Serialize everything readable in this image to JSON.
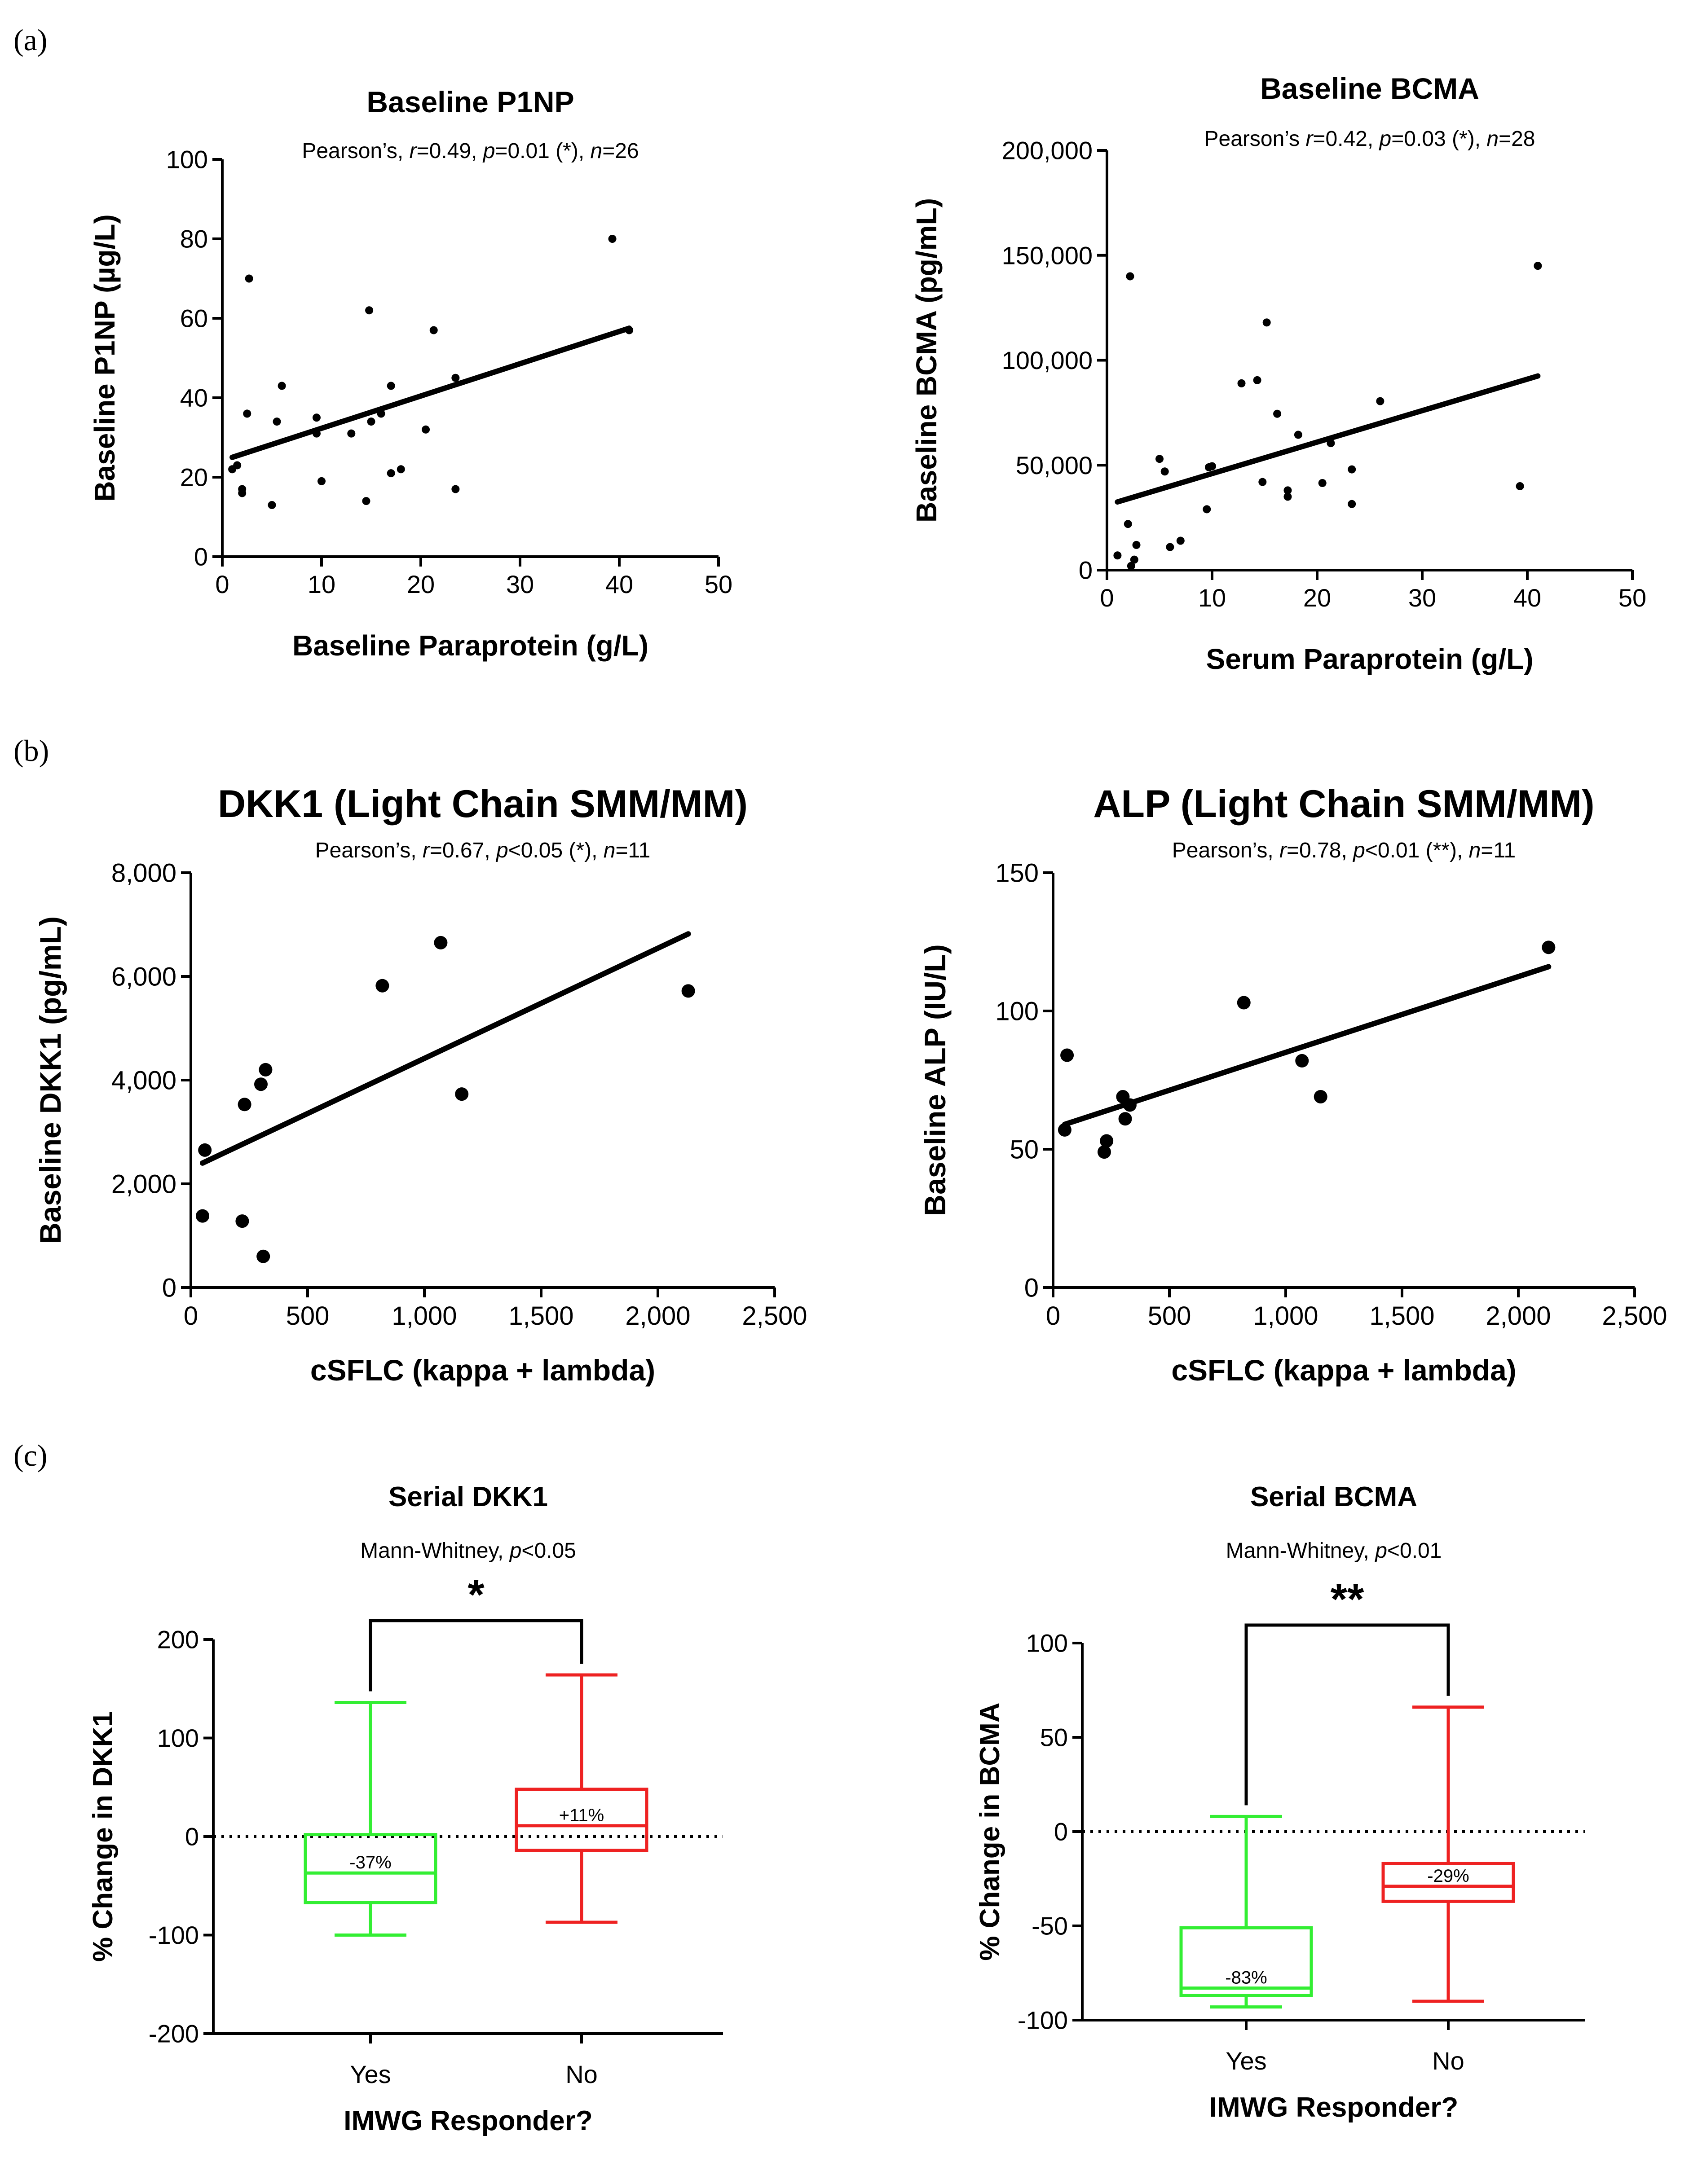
{
  "panels": [
    {
      "label": "(a)"
    },
    {
      "label": "(b)"
    },
    {
      "label": "(c)"
    }
  ],
  "chart_data": [
    {
      "id": "p1np",
      "type": "scatter",
      "panel": "(a)",
      "title": "Baseline P1NP",
      "stats": [
        {
          "text": "Pearson’s, ",
          "italic": false
        },
        {
          "text": "r",
          "italic": true
        },
        {
          "text": "=0.49, ",
          "italic": false
        },
        {
          "text": "p",
          "italic": true
        },
        {
          "text": "=0.01 (*), ",
          "italic": false
        },
        {
          "text": "n",
          "italic": true
        },
        {
          "text": "=26",
          "italic": false
        }
      ],
      "xlabel": "Baseline Paraprotein (g/L)",
      "ylabel": "Baseline P1NP (µg/L)",
      "xlim": [
        0,
        50
      ],
      "ylim": [
        0,
        100
      ],
      "xticks": [
        0,
        10,
        20,
        30,
        40,
        50
      ],
      "xtick_labels": [
        "0",
        "10",
        "20",
        "30",
        "40",
        "50"
      ],
      "yticks": [
        0,
        20,
        40,
        60,
        80,
        100
      ],
      "ytick_labels": [
        "0",
        "20",
        "40",
        "60",
        "80",
        "100"
      ],
      "points": [
        [
          1,
          22
        ],
        [
          1.5,
          23
        ],
        [
          2,
          17
        ],
        [
          2,
          16
        ],
        [
          2.5,
          36
        ],
        [
          2.7,
          70
        ],
        [
          5,
          13
        ],
        [
          5.5,
          34
        ],
        [
          6,
          43
        ],
        [
          9.5,
          35
        ],
        [
          9.5,
          31
        ],
        [
          10,
          19
        ],
        [
          13,
          31
        ],
        [
          14.5,
          14
        ],
        [
          14.8,
          62
        ],
        [
          15,
          34
        ],
        [
          16,
          36
        ],
        [
          17,
          43
        ],
        [
          17,
          21
        ],
        [
          18,
          22
        ],
        [
          20.5,
          32
        ],
        [
          21.3,
          57
        ],
        [
          23.5,
          45
        ],
        [
          23.5,
          17
        ],
        [
          39.3,
          80
        ],
        [
          41,
          57
        ]
      ],
      "fit": [
        [
          1,
          25
        ],
        [
          41,
          57.5
        ]
      ],
      "dot_size": "small"
    },
    {
      "id": "bcma",
      "type": "scatter",
      "panel": "(a)",
      "title": "Baseline BCMA",
      "stats": [
        {
          "text": "Pearson’s ",
          "italic": false
        },
        {
          "text": "r",
          "italic": true
        },
        {
          "text": "=0.42, ",
          "italic": false
        },
        {
          "text": "p",
          "italic": true
        },
        {
          "text": "=0.03 (*), ",
          "italic": false
        },
        {
          "text": "n",
          "italic": true
        },
        {
          "text": "=28",
          "italic": false
        }
      ],
      "xlabel": "Serum Paraprotein (g/L)",
      "ylabel": "Baseline BCMA (pg/mL)",
      "xlim": [
        0,
        50
      ],
      "ylim": [
        0,
        200000
      ],
      "xticks": [
        0,
        10,
        20,
        30,
        40,
        50
      ],
      "xtick_labels": [
        "0",
        "10",
        "20",
        "30",
        "40",
        "50"
      ],
      "yticks": [
        0,
        50000,
        100000,
        150000,
        200000
      ],
      "ytick_labels": [
        "0",
        "50,000",
        "100,000",
        "150,000",
        "200,000"
      ],
      "points": [
        [
          1,
          7000
        ],
        [
          2,
          22000
        ],
        [
          2.2,
          140000
        ],
        [
          2.3,
          2000
        ],
        [
          2.6,
          5000
        ],
        [
          2.8,
          12000
        ],
        [
          5,
          53000
        ],
        [
          5.5,
          47000
        ],
        [
          6,
          11000
        ],
        [
          7,
          14000
        ],
        [
          9.5,
          29000
        ],
        [
          9.7,
          49000
        ],
        [
          10,
          49500
        ],
        [
          12.8,
          89000
        ],
        [
          14.3,
          90500
        ],
        [
          14.8,
          42000
        ],
        [
          15.2,
          118000
        ],
        [
          16.2,
          74500
        ],
        [
          17.2,
          38000
        ],
        [
          17.2,
          35000
        ],
        [
          18.2,
          64500
        ],
        [
          20.5,
          41500
        ],
        [
          21.3,
          60500
        ],
        [
          23.3,
          48000
        ],
        [
          23.3,
          31500
        ],
        [
          26,
          80500
        ],
        [
          39.3,
          40000
        ],
        [
          41,
          145000
        ]
      ],
      "fit": [
        [
          1,
          32500
        ],
        [
          41,
          92500
        ]
      ],
      "dot_size": "small"
    },
    {
      "id": "dkk1",
      "type": "scatter",
      "panel": "(b)",
      "title": "DKK1 (Light Chain SMM/MM)",
      "stats": [
        {
          "text": "Pearson’s, ",
          "italic": false
        },
        {
          "text": "r",
          "italic": true
        },
        {
          "text": "=0.67, ",
          "italic": false
        },
        {
          "text": "p",
          "italic": true
        },
        {
          "text": "<0.05 (*), ",
          "italic": false
        },
        {
          "text": "n",
          "italic": true
        },
        {
          "text": "=11",
          "italic": false
        }
      ],
      "xlabel": "cSFLC (kappa + lambda)",
      "ylabel": "Baseline DKK1 (pg/mL)",
      "xlim": [
        0,
        2500
      ],
      "ylim": [
        0,
        8000
      ],
      "xticks": [
        0,
        500,
        1000,
        1500,
        2000,
        2500
      ],
      "xtick_labels": [
        "0",
        "500",
        "1,000",
        "1,500",
        "2,000",
        "2,500"
      ],
      "yticks": [
        0,
        2000,
        4000,
        6000,
        8000
      ],
      "ytick_labels": [
        "0",
        "2,000",
        "4,000",
        "6,000",
        "8,000"
      ],
      "points": [
        [
          50,
          1380
        ],
        [
          60,
          2650
        ],
        [
          220,
          1280
        ],
        [
          230,
          3530
        ],
        [
          300,
          3920
        ],
        [
          310,
          600
        ],
        [
          320,
          4200
        ],
        [
          820,
          5820
        ],
        [
          1070,
          6650
        ],
        [
          1160,
          3730
        ],
        [
          2130,
          5720
        ]
      ],
      "fit": [
        [
          50,
          2400
        ],
        [
          2130,
          6820
        ]
      ],
      "dot_size": "large"
    },
    {
      "id": "alp",
      "type": "scatter",
      "panel": "(b)",
      "title": "ALP (Light Chain SMM/MM)",
      "stats": [
        {
          "text": "Pearson’s, ",
          "italic": false
        },
        {
          "text": "r",
          "italic": true
        },
        {
          "text": "=0.78, ",
          "italic": false
        },
        {
          "text": "p",
          "italic": true
        },
        {
          "text": "<0.01 (**), ",
          "italic": false
        },
        {
          "text": "n",
          "italic": true
        },
        {
          "text": "=11",
          "italic": false
        }
      ],
      "xlabel": "cSFLC (kappa + lambda)",
      "ylabel": "Baseline ALP (IU/L)",
      "xlim": [
        0,
        2500
      ],
      "ylim": [
        0,
        150
      ],
      "xticks": [
        0,
        500,
        1000,
        1500,
        2000,
        2500
      ],
      "xtick_labels": [
        "0",
        "500",
        "1,000",
        "1,500",
        "2,000",
        "2,500"
      ],
      "yticks": [
        0,
        50,
        100,
        150
      ],
      "ytick_labels": [
        "0",
        "50",
        "100",
        "150"
      ],
      "points": [
        [
          50,
          57
        ],
        [
          60,
          84
        ],
        [
          220,
          49
        ],
        [
          230,
          53
        ],
        [
          300,
          69
        ],
        [
          310,
          61
        ],
        [
          330,
          66
        ],
        [
          820,
          103
        ],
        [
          1070,
          82
        ],
        [
          1150,
          69
        ],
        [
          2130,
          123
        ]
      ],
      "fit": [
        [
          50,
          59
        ],
        [
          2130,
          116
        ]
      ],
      "dot_size": "large"
    },
    {
      "id": "serial_dkk1",
      "type": "box",
      "panel": "(c)",
      "title": "Serial DKK1",
      "stats": [
        {
          "text": "Mann-Whitney, ",
          "italic": false
        },
        {
          "text": "p",
          "italic": true
        },
        {
          "text": "<0.05",
          "italic": false
        }
      ],
      "xlabel": "IMWG Responder?",
      "ylabel": "% Change in DKK1",
      "ylim": [
        -200,
        200
      ],
      "yticks": [
        -200,
        -100,
        0,
        100,
        200
      ],
      "ytick_labels": [
        "-200",
        "-100",
        "0",
        "100",
        "200"
      ],
      "significance": "*",
      "groups": [
        {
          "category": "Yes",
          "color": "#33ee33",
          "min": -100,
          "q1": -67,
          "median": -37,
          "q3": 2,
          "max": 136,
          "median_label": "-37%"
        },
        {
          "category": "No",
          "color": "#ee2222",
          "min": -87,
          "q1": -14,
          "median": 11,
          "q3": 48,
          "max": 164,
          "median_label": "+11%"
        }
      ]
    },
    {
      "id": "serial_bcma",
      "type": "box",
      "panel": "(c)",
      "title": "Serial BCMA",
      "stats": [
        {
          "text": "Mann-Whitney, ",
          "italic": false
        },
        {
          "text": "p",
          "italic": true
        },
        {
          "text": "<0.01",
          "italic": false
        }
      ],
      "xlabel": "IMWG Responder?",
      "ylabel": "% Change in BCMA",
      "ylim": [
        -100,
        100
      ],
      "yticks": [
        -100,
        -50,
        0,
        50,
        100
      ],
      "ytick_labels": [
        "-100",
        "-50",
        "0",
        "50",
        "100"
      ],
      "significance": "**",
      "groups": [
        {
          "category": "Yes",
          "color": "#33ee33",
          "min": -93,
          "q1": -87,
          "median": -83,
          "q3": -51,
          "max": 8,
          "median_label": "-83%"
        },
        {
          "category": "No",
          "color": "#ee2222",
          "min": -90,
          "q1": -37,
          "median": -29,
          "q3": -17,
          "max": 66,
          "median_label": "-29%"
        }
      ]
    }
  ]
}
